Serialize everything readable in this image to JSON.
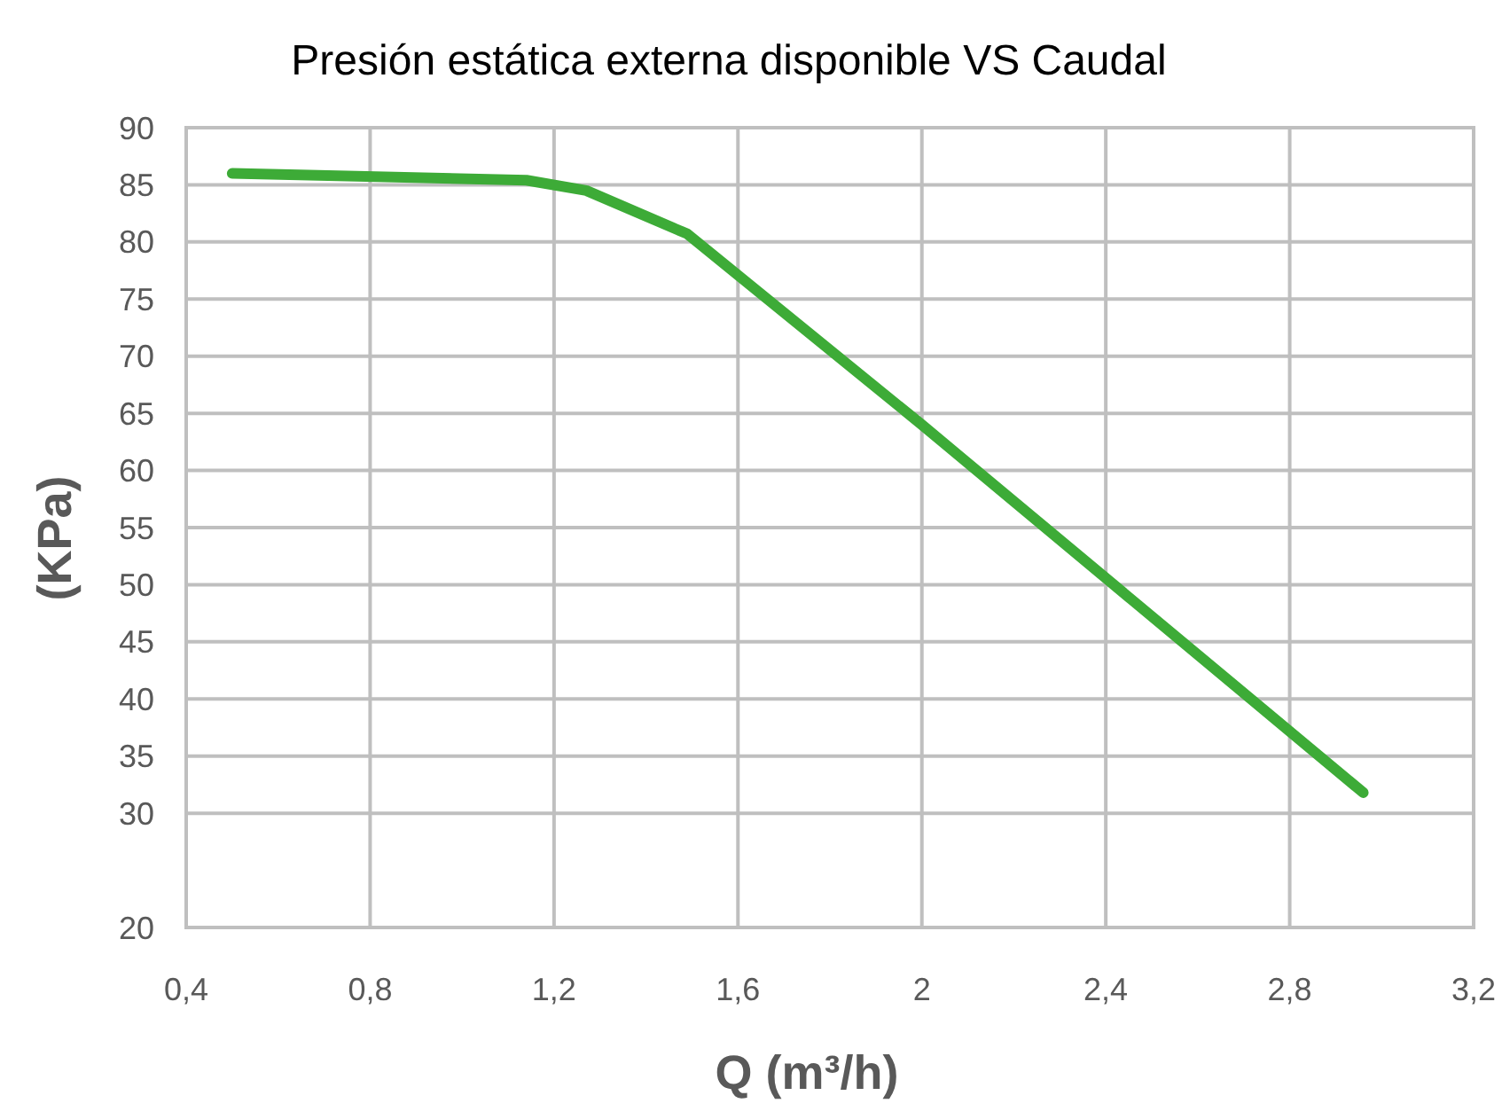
{
  "chart_data": {
    "type": "line",
    "title": "Presión estática externa disponible VS Caudal",
    "xlabel": "Q (m³/h)",
    "ylabel": "(KPa)",
    "x": [
      0.5,
      1.14,
      1.27,
      1.49,
      2.0,
      2.96
    ],
    "values": [
      86.0,
      85.4,
      84.5,
      80.7,
      64.0,
      31.8
    ],
    "color": "#3dab37",
    "xlim": [
      0.4,
      3.2
    ],
    "xticks": [
      {
        "value": 0.4,
        "label": "0,4"
      },
      {
        "value": 0.8,
        "label": "0,8"
      },
      {
        "value": 1.2,
        "label": "1,2"
      },
      {
        "value": 1.6,
        "label": "1,6"
      },
      2,
      {
        "value": 2.4,
        "label": "2,4"
      },
      {
        "value": 2.8,
        "label": "2,8"
      },
      {
        "value": 3.2,
        "label": "3,2"
      }
    ],
    "ylim": [
      20,
      90
    ],
    "yticks": [
      20,
      30,
      35,
      40,
      45,
      50,
      55,
      60,
      65,
      70,
      75,
      80,
      85,
      90
    ],
    "grid": true
  }
}
